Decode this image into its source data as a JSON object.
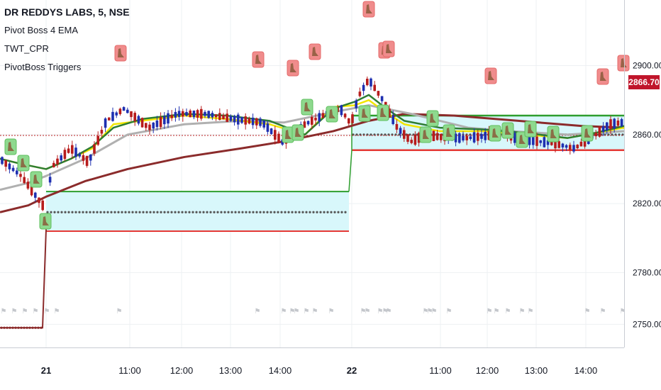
{
  "header": {
    "symbol": "DR REDDYS LABS, 5, NSE",
    "indicators": [
      "Pivot Boss 4 EMA",
      "TWT_CPR",
      "PivotBoss Triggers"
    ]
  },
  "last_price_label": "2866.70",
  "colors": {
    "up_candle": "#1e2fb0",
    "down_candle": "#b71c1c",
    "ema_fast": "#2e7d32",
    "ema_yellow": "#f2e600",
    "ema_gray": "#b0b0b0",
    "ema_slow": "#8b2b2b",
    "cpr_fill": "#d8f7fb",
    "cpr_top": "#2e9e2e",
    "cpr_bottom": "#e53935",
    "pivot_dots": "#555555",
    "trigger_green": "#8ed98e",
    "trigger_red": "#f08c8c",
    "last_price": "#c0152b"
  },
  "chart_data": {
    "type": "candlestick",
    "xlabel": "",
    "ylabel": "",
    "ylim": [
      2737,
      2922
    ],
    "y_ticks": [
      2750,
      2780,
      2820,
      2860,
      2900
    ],
    "y_tick_labels": [
      "2750.00",
      "2780.00",
      "2820.00",
      "2860.00",
      "2900.00"
    ],
    "x_ticks": [
      "21",
      "11:00",
      "12:00",
      "13:00",
      "14:00",
      "22",
      "11:00",
      "12:00",
      "13:00",
      "14:00"
    ],
    "grid": true,
    "last_price": 2866.7,
    "prev_close_line": 2859.5,
    "series": [
      {
        "name": "Pivot Boss 4 EMA",
        "kind": "ema"
      },
      {
        "name": "TWT_CPR",
        "kind": "cpr",
        "day1": {
          "top": 2827,
          "pivot": 2815,
          "bottom": 2804
        },
        "day2": {
          "top": 2871,
          "pivot": 2860,
          "bottom": 2851
        }
      },
      {
        "name": "PivotBoss Triggers",
        "kind": "markers"
      }
    ]
  }
}
